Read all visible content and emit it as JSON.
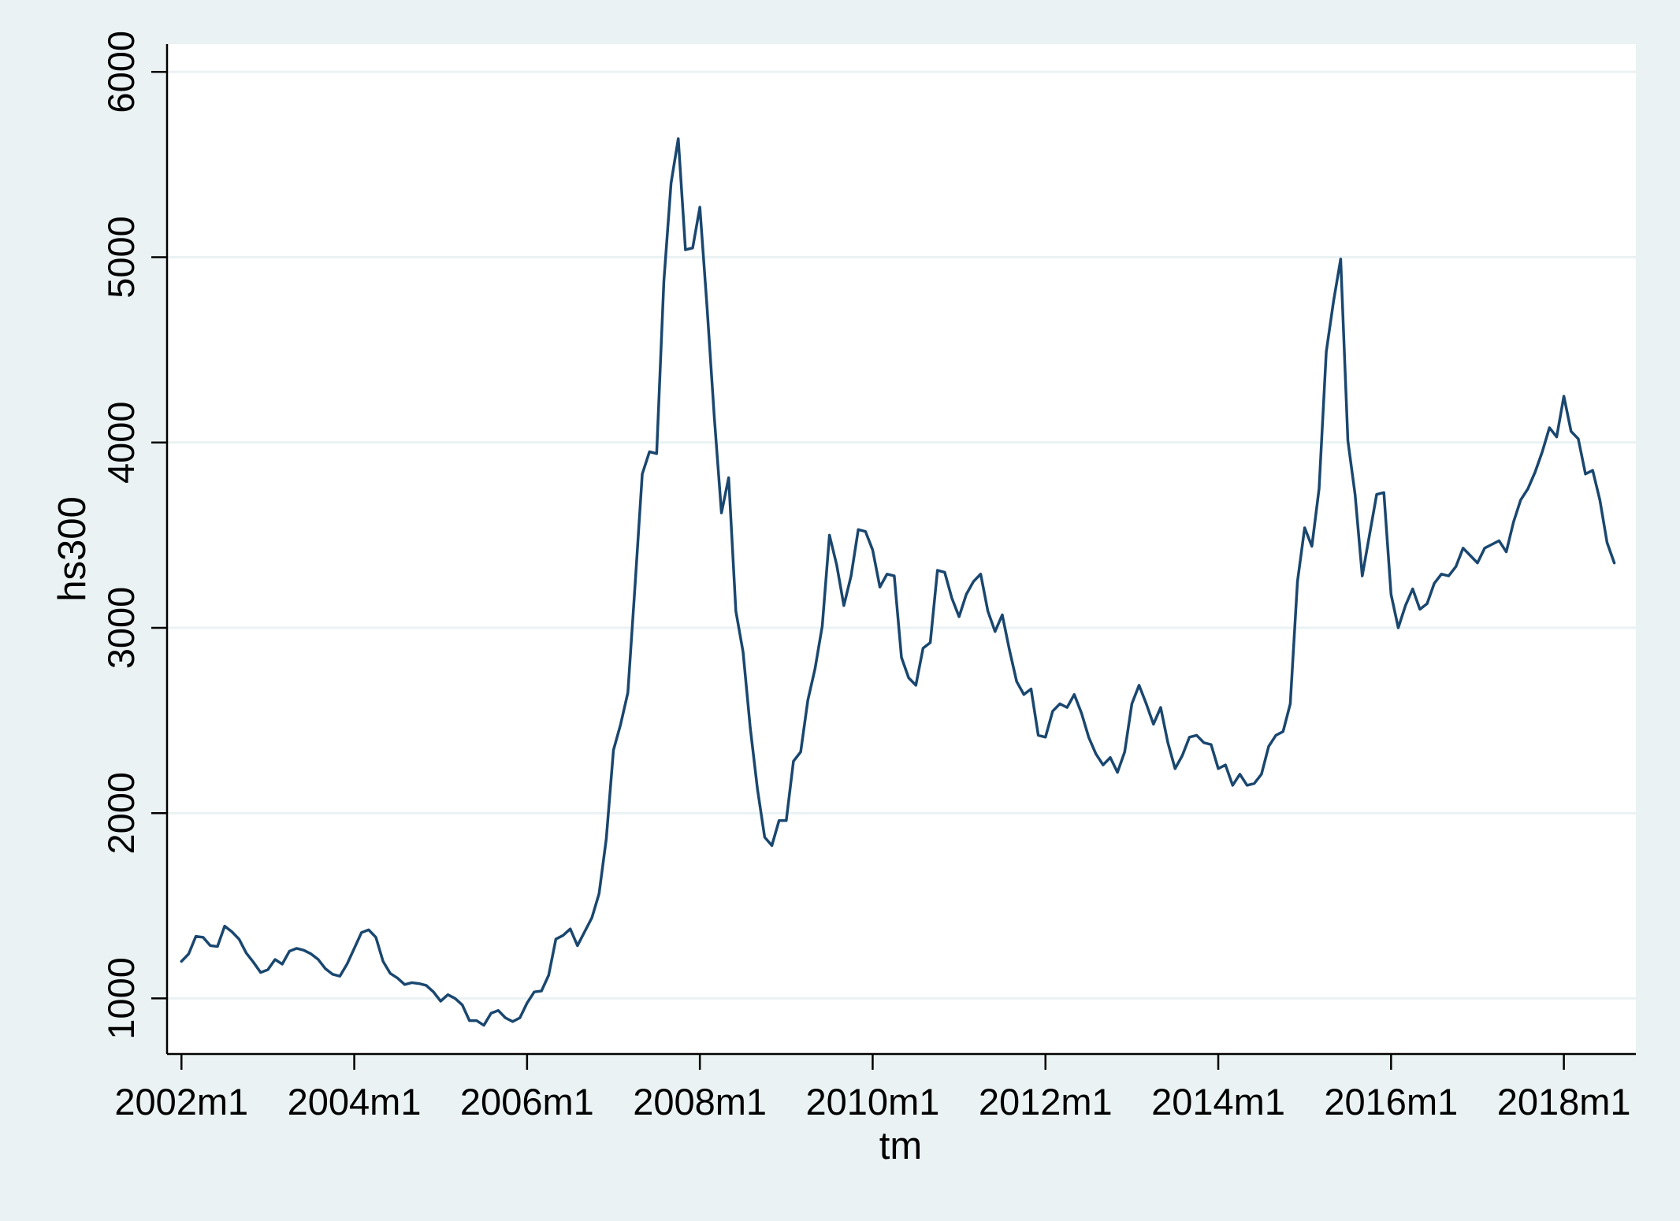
{
  "chart_data": {
    "type": "line",
    "title": "",
    "xlabel": "tm",
    "ylabel": "hs300",
    "ylim": [
      700,
      6150
    ],
    "xlim": [
      "2001m11",
      "2018m11"
    ],
    "y_ticks": [
      1000,
      2000,
      3000,
      4000,
      5000,
      6000
    ],
    "y_tick_labels": [
      "1000",
      "2000",
      "3000",
      "4000",
      "5000",
      "6000"
    ],
    "x_ticks": [
      "2002m1",
      "2004m1",
      "2006m1",
      "2008m1",
      "2010m1",
      "2012m1",
      "2014m1",
      "2016m1",
      "2018m1"
    ],
    "x_tick_labels": [
      "2002m1",
      "2004m1",
      "2006m1",
      "2008m1",
      "2010m1",
      "2012m1",
      "2014m1",
      "2016m1",
      "2018m1"
    ],
    "grid": "horizontal",
    "legend": "none",
    "colors": {
      "background": "#eaf2f3",
      "plot_area": "#ffffff",
      "gridline": "#eaf2f3",
      "line": "#1a476f",
      "axis": "#000000"
    },
    "series": [
      {
        "x": [
          "2002m1",
          "2002m2",
          "2002m3",
          "2002m4",
          "2002m5",
          "2002m6",
          "2002m7",
          "2002m8",
          "2002m9",
          "2002m10",
          "2002m11",
          "2002m12",
          "2003m1",
          "2003m2",
          "2003m3",
          "2003m4",
          "2003m5",
          "2003m6",
          "2003m7",
          "2003m8",
          "2003m9",
          "2003m10",
          "2003m11",
          "2003m12",
          "2004m1",
          "2004m2",
          "2004m3",
          "2004m4",
          "2004m5",
          "2004m6",
          "2004m7",
          "2004m8",
          "2004m9",
          "2004m10",
          "2004m11",
          "2004m12",
          "2005m1",
          "2005m2",
          "2005m3",
          "2005m4",
          "2005m5",
          "2005m6",
          "2005m7",
          "2005m8",
          "2005m9",
          "2005m10",
          "2005m11",
          "2005m12",
          "2006m1",
          "2006m2",
          "2006m3",
          "2006m4",
          "2006m5",
          "2006m6",
          "2006m7",
          "2006m8",
          "2006m9",
          "2006m10",
          "2006m11",
          "2006m12",
          "2007m1",
          "2007m2",
          "2007m3",
          "2007m4",
          "2007m5",
          "2007m6",
          "2007m7",
          "2007m8",
          "2007m9",
          "2007m10",
          "2007m11",
          "2007m12",
          "2008m1",
          "2008m2",
          "2008m3",
          "2008m4",
          "2008m5",
          "2008m6",
          "2008m7",
          "2008m8",
          "2008m9",
          "2008m10",
          "2008m11",
          "2008m12",
          "2009m1",
          "2009m2",
          "2009m3",
          "2009m4",
          "2009m5",
          "2009m6",
          "2009m7",
          "2009m8",
          "2009m9",
          "2009m10",
          "2009m11",
          "2009m12",
          "2010m1",
          "2010m2",
          "2010m3",
          "2010m4",
          "2010m5",
          "2010m6",
          "2010m7",
          "2010m8",
          "2010m9",
          "2010m10",
          "2010m11",
          "2010m12",
          "2011m1",
          "2011m2",
          "2011m3",
          "2011m4",
          "2011m5",
          "2011m6",
          "2011m7",
          "2011m8",
          "2011m9",
          "2011m10",
          "2011m11",
          "2011m12",
          "2012m1",
          "2012m2",
          "2012m3",
          "2012m4",
          "2012m5",
          "2012m6",
          "2012m7",
          "2012m8",
          "2012m9",
          "2012m10",
          "2012m11",
          "2012m12",
          "2013m1",
          "2013m2",
          "2013m3",
          "2013m4",
          "2013m5",
          "2013m6",
          "2013m7",
          "2013m8",
          "2013m9",
          "2013m10",
          "2013m11",
          "2013m12",
          "2014m1",
          "2014m2",
          "2014m3",
          "2014m4",
          "2014m5",
          "2014m6",
          "2014m7",
          "2014m8",
          "2014m9",
          "2014m10",
          "2014m11",
          "2014m12",
          "2015m1",
          "2015m2",
          "2015m3",
          "2015m4",
          "2015m5",
          "2015m6",
          "2015m7",
          "2015m8",
          "2015m9",
          "2015m10",
          "2015m11",
          "2015m12",
          "2016m1",
          "2016m2",
          "2016m3",
          "2016m4",
          "2016m5",
          "2016m6",
          "2016m7",
          "2016m8",
          "2016m9",
          "2016m10",
          "2016m11",
          "2016m12",
          "2017m1",
          "2017m2",
          "2017m3",
          "2017m4",
          "2017m5",
          "2017m6",
          "2017m7",
          "2017m8",
          "2017m9",
          "2017m10",
          "2017m11",
          "2017m12",
          "2018m1",
          "2018m2",
          "2018m3",
          "2018m4",
          "2018m5",
          "2018m6",
          "2018m7",
          "2018m8"
        ],
        "values": [
          1200,
          1240,
          1335,
          1330,
          1285,
          1280,
          1390,
          1360,
          1320,
          1245,
          1195,
          1140,
          1155,
          1210,
          1185,
          1255,
          1270,
          1260,
          1240,
          1210,
          1160,
          1130,
          1120,
          1185,
          1270,
          1355,
          1370,
          1330,
          1200,
          1135,
          1110,
          1075,
          1085,
          1080,
          1070,
          1035,
          985,
          1020,
          1000,
          965,
          880,
          880,
          855,
          920,
          935,
          895,
          875,
          895,
          975,
          1035,
          1040,
          1125,
          1320,
          1340,
          1375,
          1285,
          1360,
          1435,
          1565,
          1860,
          2340,
          2480,
          2650,
          3230,
          3830,
          3950,
          3940,
          4870,
          5400,
          5640,
          5040,
          5050,
          5270,
          4730,
          4140,
          3620,
          3810,
          3090,
          2870,
          2460,
          2130,
          1870,
          1825,
          1960,
          1960,
          2280,
          2330,
          2610,
          2780,
          3010,
          3500,
          3340,
          3120,
          3280,
          3530,
          3520,
          3420,
          3220,
          3290,
          3280,
          2840,
          2730,
          2690,
          2890,
          2920,
          3310,
          3300,
          3160,
          3060,
          3180,
          3250,
          3290,
          3090,
          2980,
          3070,
          2880,
          2710,
          2640,
          2670,
          2420,
          2410,
          2550,
          2590,
          2570,
          2640,
          2540,
          2410,
          2320,
          2260,
          2300,
          2220,
          2330,
          2590,
          2690,
          2590,
          2480,
          2570,
          2380,
          2240,
          2310,
          2410,
          2420,
          2380,
          2370,
          2240,
          2260,
          2150,
          2210,
          2150,
          2160,
          2210,
          2360,
          2420,
          2440,
          2590,
          3250,
          3540,
          3440,
          3750,
          4490,
          4760,
          4990,
          4010,
          3720,
          3280,
          3500,
          3720,
          3730,
          3180,
          3000,
          3120,
          3210,
          3100,
          3130,
          3240,
          3290,
          3280,
          3330,
          3430,
          3390,
          3350,
          3430,
          3450,
          3470,
          3410,
          3570,
          3690,
          3750,
          3840,
          3950,
          4080,
          4030,
          4250,
          4060,
          4020,
          3830,
          3850,
          3690,
          3460,
          3350
        ]
      }
    ]
  }
}
